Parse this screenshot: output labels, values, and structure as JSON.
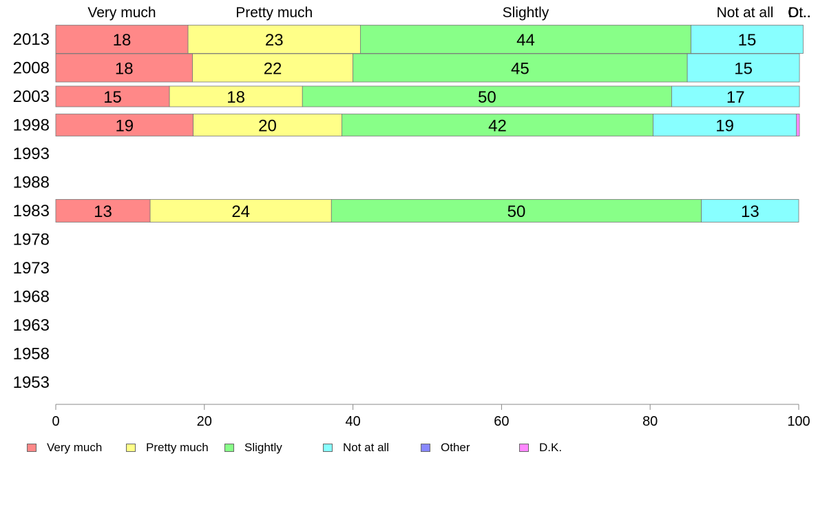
{
  "chart_data": {
    "type": "bar",
    "orientation": "horizontal",
    "stacked": true,
    "categories": [
      "2013",
      "2008",
      "2003",
      "1998",
      "1993",
      "1988",
      "1983",
      "1978",
      "1973",
      "1968",
      "1963",
      "1958",
      "1953"
    ],
    "series": [
      {
        "name": "Very much",
        "color": "#ff8888",
        "values": [
          17.8,
          18.4,
          15.3,
          18.5,
          null,
          null,
          12.7,
          null,
          null,
          null,
          null,
          null,
          null
        ],
        "labels": [
          "18",
          "18",
          "15",
          "19",
          "",
          "",
          "13",
          "",
          "",
          "",
          "",
          "",
          ""
        ]
      },
      {
        "name": "Pretty much",
        "color": "#ffff88",
        "values": [
          23.2,
          21.6,
          17.9,
          20.0,
          null,
          null,
          24.4,
          null,
          null,
          null,
          null,
          null,
          null
        ],
        "labels": [
          "23",
          "22",
          "18",
          "20",
          "",
          "",
          "24",
          "",
          "",
          "",
          "",
          "",
          ""
        ]
      },
      {
        "name": "Slightly",
        "color": "#88ff88",
        "values": [
          44.5,
          45.0,
          49.7,
          41.9,
          null,
          null,
          49.8,
          null,
          null,
          null,
          null,
          null,
          null
        ],
        "labels": [
          "44",
          "45",
          "50",
          "42",
          "",
          "",
          "50",
          "",
          "",
          "",
          "",
          "",
          ""
        ]
      },
      {
        "name": "Not at all",
        "color": "#88ffff",
        "values": [
          15.1,
          15.1,
          17.2,
          19.3,
          null,
          null,
          13.1,
          null,
          null,
          null,
          null,
          null,
          null
        ],
        "labels": [
          "15",
          "15",
          "17",
          "19",
          "",
          "",
          "13",
          "",
          "",
          "",
          "",
          "",
          ""
        ]
      },
      {
        "name": "Other",
        "color": "#8888ff",
        "values": [
          0,
          0,
          0,
          0,
          null,
          null,
          0,
          null,
          null,
          null,
          null,
          null,
          null
        ],
        "labels": [
          "",
          "",
          "",
          "",
          "",
          "",
          "",
          "",
          "",
          "",
          "",
          "",
          ""
        ]
      },
      {
        "name": "D.K.",
        "color": "#ff88ff",
        "values": [
          0,
          0,
          0,
          0.4,
          null,
          null,
          0,
          null,
          null,
          null,
          null,
          null,
          null
        ],
        "labels": [
          "",
          "",
          "",
          "",
          "",
          "",
          "",
          "",
          "",
          "",
          "",
          "",
          ""
        ]
      }
    ],
    "top_labels": [
      "Very much",
      "Pretty much",
      "Slightly",
      "Not at all",
      "Ot..",
      "D..."
    ],
    "xlim": [
      0,
      100
    ],
    "xticks": [
      0,
      20,
      40,
      60,
      80,
      100
    ],
    "legend_position": "bottom",
    "grid": false,
    "title": "",
    "xlabel": "",
    "ylabel": ""
  }
}
